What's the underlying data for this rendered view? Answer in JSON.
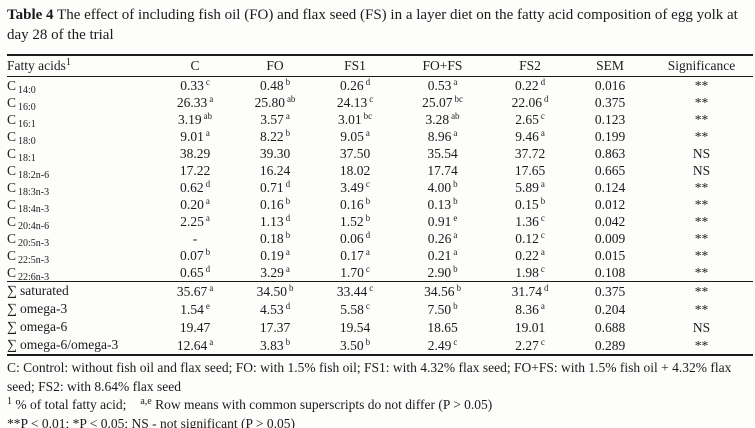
{
  "page": {
    "title_label": "Table 4",
    "title_text": "The effect of including fish oil (FO) and flax seed (FS) in a layer diet on the fatty acid composition of egg yolk at day 28 of the trial"
  },
  "table": {
    "header": {
      "fatty_acids_label": "Fatty acids",
      "fatty_acids_superscript": "1",
      "columns": [
        "C",
        "FO",
        "FS1",
        "FO+FS",
        "FS2",
        "SEM",
        "Significance"
      ]
    },
    "rows": [
      {
        "group": "fatty-acid",
        "label": "C",
        "subscript": "14:0",
        "cells": [
          {
            "v": "0.33",
            "sup": "c"
          },
          {
            "v": "0.48",
            "sup": "b"
          },
          {
            "v": "0.26",
            "sup": "d"
          },
          {
            "v": "0.53",
            "sup": "a"
          },
          {
            "v": "0.22",
            "sup": "d"
          }
        ],
        "sem": "0.016",
        "significance": "**"
      },
      {
        "group": "fatty-acid",
        "label": "C",
        "subscript": "16:0",
        "cells": [
          {
            "v": "26.33",
            "sup": "a"
          },
          {
            "v": "25.80",
            "sup": "ab"
          },
          {
            "v": "24.13",
            "sup": "c"
          },
          {
            "v": "25.07",
            "sup": "bc"
          },
          {
            "v": "22.06",
            "sup": "d"
          }
        ],
        "sem": "0.375",
        "significance": "**"
      },
      {
        "group": "fatty-acid",
        "label": "C",
        "subscript": "16:1",
        "cells": [
          {
            "v": "3.19",
            "sup": "ab"
          },
          {
            "v": "3.57",
            "sup": "a"
          },
          {
            "v": "3.01",
            "sup": "bc"
          },
          {
            "v": "3.28",
            "sup": "ab"
          },
          {
            "v": "2.65",
            "sup": "c"
          }
        ],
        "sem": "0.123",
        "significance": "**"
      },
      {
        "group": "fatty-acid",
        "label": "C",
        "subscript": "18:0",
        "cells": [
          {
            "v": "9.01",
            "sup": "a"
          },
          {
            "v": "8.22",
            "sup": "b"
          },
          {
            "v": "9.05",
            "sup": "a"
          },
          {
            "v": "8.96",
            "sup": "a"
          },
          {
            "v": "9.46",
            "sup": "a"
          }
        ],
        "sem": "0.199",
        "significance": "**"
      },
      {
        "group": "fatty-acid",
        "label": "C",
        "subscript": "18:1",
        "cells": [
          {
            "v": "38.29",
            "sup": ""
          },
          {
            "v": "39.30",
            "sup": ""
          },
          {
            "v": "37.50",
            "sup": ""
          },
          {
            "v": "35.54",
            "sup": ""
          },
          {
            "v": "37.72",
            "sup": ""
          }
        ],
        "sem": "0.863",
        "significance": "NS"
      },
      {
        "group": "fatty-acid",
        "label": "C",
        "subscript": "18:2n-6",
        "cells": [
          {
            "v": "17.22",
            "sup": ""
          },
          {
            "v": "16.24",
            "sup": ""
          },
          {
            "v": "18.02",
            "sup": ""
          },
          {
            "v": "17.74",
            "sup": ""
          },
          {
            "v": "17.65",
            "sup": ""
          }
        ],
        "sem": "0.665",
        "significance": "NS"
      },
      {
        "group": "fatty-acid",
        "label": "C",
        "subscript": "18:3n-3",
        "cells": [
          {
            "v": "0.62",
            "sup": "d"
          },
          {
            "v": "0.71",
            "sup": "d"
          },
          {
            "v": "3.49",
            "sup": "c"
          },
          {
            "v": "4.00",
            "sup": "b"
          },
          {
            "v": "5.89",
            "sup": "a"
          }
        ],
        "sem": "0.124",
        "significance": "**"
      },
      {
        "group": "fatty-acid",
        "label": "C",
        "subscript": "18:4n-3",
        "cells": [
          {
            "v": "0.20",
            "sup": "a"
          },
          {
            "v": "0.16",
            "sup": "b"
          },
          {
            "v": "0.16",
            "sup": "b"
          },
          {
            "v": "0.13",
            "sup": "b"
          },
          {
            "v": "0.15",
            "sup": "b"
          }
        ],
        "sem": "0.012",
        "significance": "**"
      },
      {
        "group": "fatty-acid",
        "label": "C",
        "subscript": "20:4n-6",
        "cells": [
          {
            "v": "2.25",
            "sup": "a"
          },
          {
            "v": "1.13",
            "sup": "d"
          },
          {
            "v": "1.52",
            "sup": "b"
          },
          {
            "v": "0.91",
            "sup": "e"
          },
          {
            "v": "1.36",
            "sup": "c"
          }
        ],
        "sem": "0.042",
        "significance": "**"
      },
      {
        "group": "fatty-acid",
        "label": "C",
        "subscript": "20:5n-3",
        "cells": [
          {
            "v": "-",
            "sup": ""
          },
          {
            "v": "0.18",
            "sup": "b"
          },
          {
            "v": "0.06",
            "sup": "d"
          },
          {
            "v": "0.26",
            "sup": "a"
          },
          {
            "v": "0.12",
            "sup": "c"
          }
        ],
        "sem": "0.009",
        "significance": "**"
      },
      {
        "group": "fatty-acid",
        "label": "C",
        "subscript": "22:5n-3",
        "cells": [
          {
            "v": "0.07",
            "sup": "b"
          },
          {
            "v": "0.19",
            "sup": "a"
          },
          {
            "v": "0.17",
            "sup": "a"
          },
          {
            "v": "0.21",
            "sup": "a"
          },
          {
            "v": "0.22",
            "sup": "a"
          }
        ],
        "sem": "0.015",
        "significance": "**"
      },
      {
        "group": "fatty-acid",
        "label": "C",
        "subscript": "22:6n-3",
        "cells": [
          {
            "v": "0.65",
            "sup": "d"
          },
          {
            "v": "3.29",
            "sup": "a"
          },
          {
            "v": "1.70",
            "sup": "c"
          },
          {
            "v": "2.90",
            "sup": "b"
          },
          {
            "v": "1.98",
            "sup": "c"
          }
        ],
        "sem": "0.108",
        "significance": "**"
      },
      {
        "group": "sum",
        "section_start": true,
        "label": "saturated",
        "subscript": "",
        "cells": [
          {
            "v": "35.67",
            "sup": "a"
          },
          {
            "v": "34.50",
            "sup": "b"
          },
          {
            "v": "33.44",
            "sup": "c"
          },
          {
            "v": "34.56",
            "sup": "b"
          },
          {
            "v": "31.74",
            "sup": "d"
          }
        ],
        "sem": "0.375",
        "significance": "**"
      },
      {
        "group": "sum",
        "label": "omega-3",
        "subscript": "",
        "cells": [
          {
            "v": "1.54",
            "sup": "e"
          },
          {
            "v": "4.53",
            "sup": "d"
          },
          {
            "v": "5.58",
            "sup": "c"
          },
          {
            "v": "7.50",
            "sup": "b"
          },
          {
            "v": "8.36",
            "sup": "a"
          }
        ],
        "sem": "0.204",
        "significance": "**"
      },
      {
        "group": "sum",
        "label": "omega-6",
        "subscript": "",
        "cells": [
          {
            "v": "19.47",
            "sup": ""
          },
          {
            "v": "17.37",
            "sup": ""
          },
          {
            "v": "19.54",
            "sup": ""
          },
          {
            "v": "18.65",
            "sup": ""
          },
          {
            "v": "19.01",
            "sup": ""
          }
        ],
        "sem": "0.688",
        "significance": "NS"
      },
      {
        "group": "sum",
        "label": "omega-6/omega-3",
        "subscript": "",
        "cells": [
          {
            "v": "12.64",
            "sup": "a"
          },
          {
            "v": "3.83",
            "sup": "b"
          },
          {
            "v": "3.50",
            "sup": "b"
          },
          {
            "v": "2.49",
            "sup": "c"
          },
          {
            "v": "2.27",
            "sup": "c"
          }
        ],
        "sem": "0.289",
        "significance": "**"
      }
    ],
    "sum_symbol": "∑"
  },
  "footnotes": {
    "treatments": "C: Control: without fish oil and flax seed; FO: with 1.5% fish oil; FS1: with 4.32% flax seed; FO+FS: with 1.5% fish oil + 4.32% flax seed; FS2: with 8.64% flax seed",
    "note1_superscript": "1",
    "note1_text": " % of total fatty acid;",
    "note2_superscript": "a,e",
    "note2_text": " Row means with common superscripts do not differ (P > 0.05)",
    "significance_note": "**P < 0.01;  *P < 0.05;  NS - not significant (P > 0.05)"
  }
}
